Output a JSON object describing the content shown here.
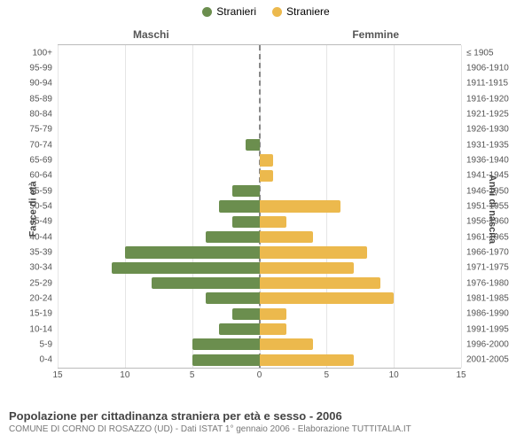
{
  "legend": {
    "male": {
      "label": "Stranieri",
      "color": "#6b8e4e"
    },
    "female": {
      "label": "Straniere",
      "color": "#ecb94d"
    }
  },
  "side_titles": {
    "left": "Maschi",
    "right": "Femmine"
  },
  "axis_titles": {
    "left": "Fasce di età",
    "right": "Anni di nascita"
  },
  "x_axis": {
    "max": 15,
    "ticks": [
      15,
      10,
      5,
      0,
      5,
      10,
      15
    ]
  },
  "colors": {
    "bg": "#ffffff",
    "grid": "#e5e5e5",
    "center": "#888888",
    "text": "#555555"
  },
  "rows": [
    {
      "age": "100+",
      "cohort": "≤ 1905",
      "m": 0,
      "f": 0
    },
    {
      "age": "95-99",
      "cohort": "1906-1910",
      "m": 0,
      "f": 0
    },
    {
      "age": "90-94",
      "cohort": "1911-1915",
      "m": 0,
      "f": 0
    },
    {
      "age": "85-89",
      "cohort": "1916-1920",
      "m": 0,
      "f": 0
    },
    {
      "age": "80-84",
      "cohort": "1921-1925",
      "m": 0,
      "f": 0
    },
    {
      "age": "75-79",
      "cohort": "1926-1930",
      "m": 0,
      "f": 0
    },
    {
      "age": "70-74",
      "cohort": "1931-1935",
      "m": 1,
      "f": 0
    },
    {
      "age": "65-69",
      "cohort": "1936-1940",
      "m": 0,
      "f": 1
    },
    {
      "age": "60-64",
      "cohort": "1941-1945",
      "m": 0,
      "f": 1
    },
    {
      "age": "55-59",
      "cohort": "1946-1950",
      "m": 2,
      "f": 0
    },
    {
      "age": "50-54",
      "cohort": "1951-1955",
      "m": 3,
      "f": 6
    },
    {
      "age": "45-49",
      "cohort": "1956-1960",
      "m": 2,
      "f": 2
    },
    {
      "age": "40-44",
      "cohort": "1961-1965",
      "m": 4,
      "f": 4
    },
    {
      "age": "35-39",
      "cohort": "1966-1970",
      "m": 10,
      "f": 8
    },
    {
      "age": "30-34",
      "cohort": "1971-1975",
      "m": 11,
      "f": 7
    },
    {
      "age": "25-29",
      "cohort": "1976-1980",
      "m": 8,
      "f": 9
    },
    {
      "age": "20-24",
      "cohort": "1981-1985",
      "m": 4,
      "f": 10
    },
    {
      "age": "15-19",
      "cohort": "1986-1990",
      "m": 2,
      "f": 2
    },
    {
      "age": "10-14",
      "cohort": "1991-1995",
      "m": 3,
      "f": 2
    },
    {
      "age": "5-9",
      "cohort": "1996-2000",
      "m": 5,
      "f": 4
    },
    {
      "age": "0-4",
      "cohort": "2001-2005",
      "m": 5,
      "f": 7
    }
  ],
  "footer": {
    "title": "Popolazione per cittadinanza straniera per età e sesso - 2006",
    "sub": "COMUNE DI CORNO DI ROSAZZO (UD) - Dati ISTAT 1° gennaio 2006 - Elaborazione TUTTITALIA.IT"
  }
}
